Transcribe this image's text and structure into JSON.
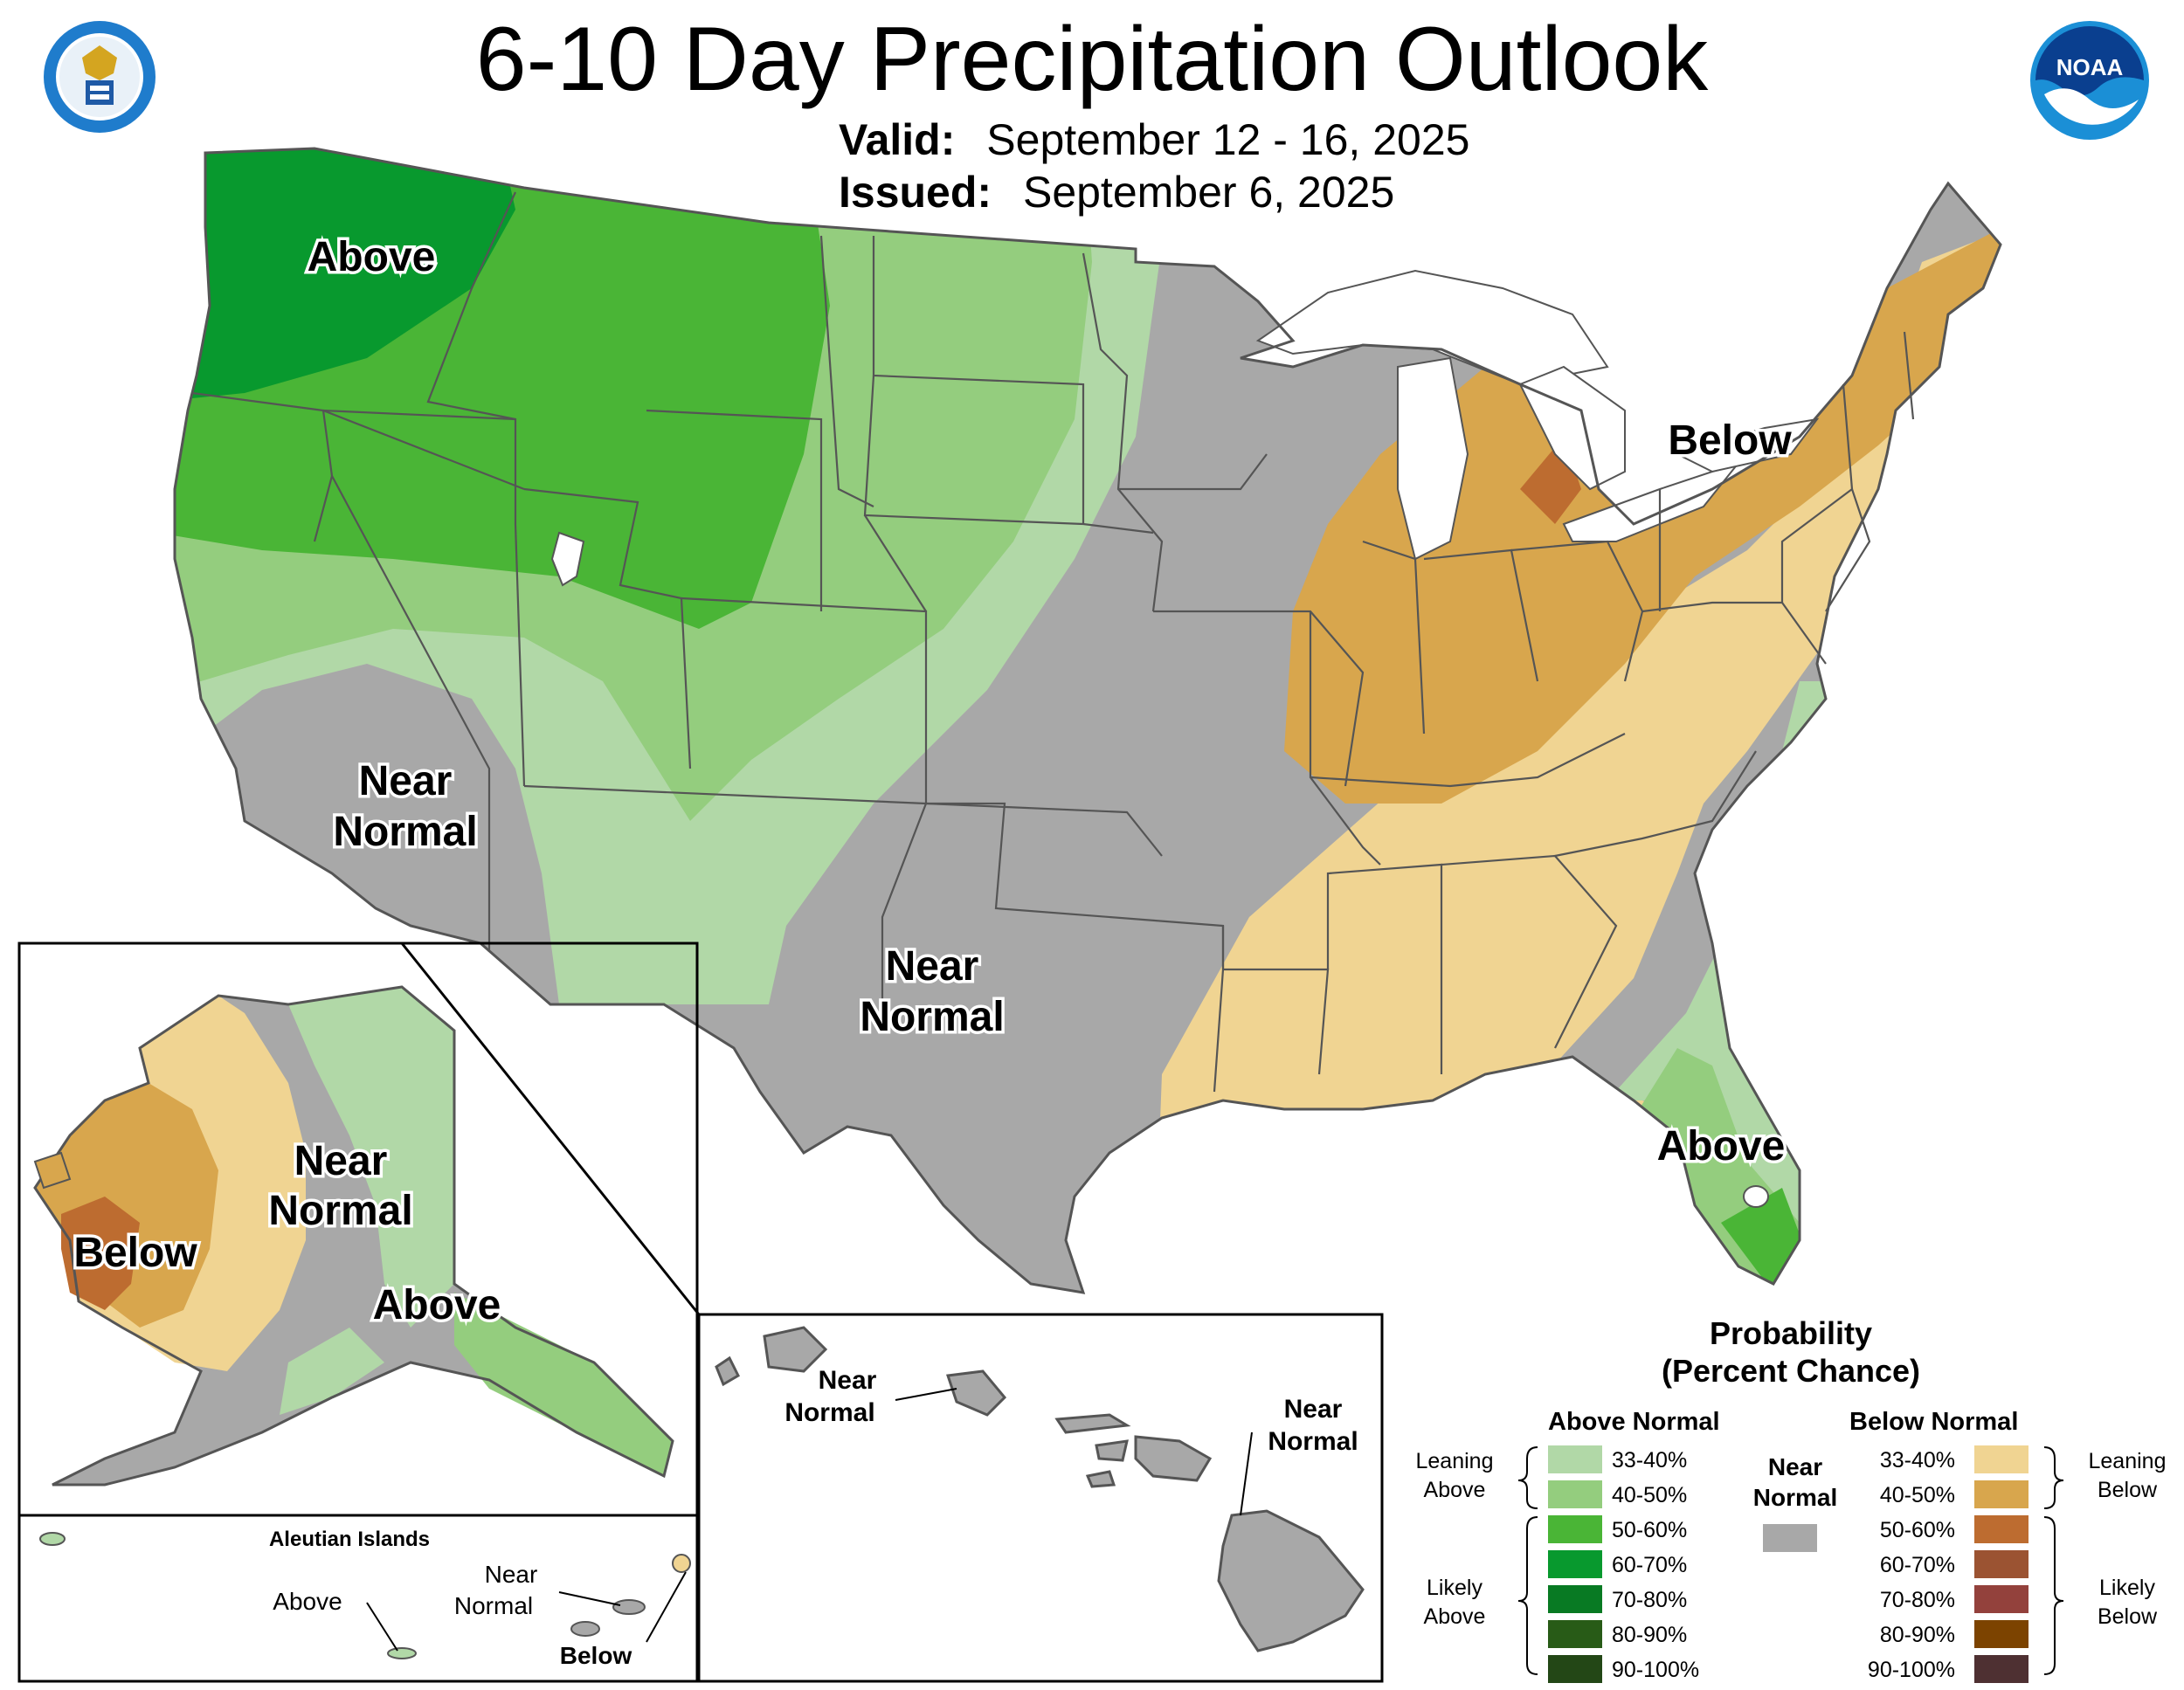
{
  "title": "6-10 Day Precipitation Outlook",
  "valid_label": "Valid:",
  "valid_value": "September 12 - 16, 2025",
  "issued_label": "Issued:",
  "issued_value": "September 6, 2025",
  "logos": {
    "left": "department-of-commerce-seal",
    "right": "noaa-logo",
    "right_text": "NOAA"
  },
  "map": {
    "conus_labels": {
      "above_nw": "Above",
      "near_sw_1": "Near",
      "near_sw_2": "Normal",
      "near_tx_1": "Near",
      "near_tx_2": "Normal",
      "below_ne": "Below",
      "above_fl": "Above"
    },
    "alaska_labels": {
      "near_1": "Near",
      "near_2": "Normal",
      "below": "Below",
      "above": "Above"
    },
    "aleutian": {
      "title": "Aleutian Islands",
      "above": "Above",
      "near_1": "Near",
      "near_2": "Normal",
      "below": "Below"
    },
    "hawaii": {
      "near_w_1": "Near",
      "near_w_2": "Normal",
      "near_e_1": "Near",
      "near_e_2": "Normal"
    }
  },
  "legend": {
    "title_1": "Probability",
    "title_2": "(Percent Chance)",
    "above_header": "Above Normal",
    "below_header": "Below Normal",
    "near_1": "Near",
    "near_2": "Normal",
    "leaning_above_1": "Leaning",
    "leaning_above_2": "Above",
    "likely_above_1": "Likely",
    "likely_above_2": "Above",
    "leaning_below_1": "Leaning",
    "leaning_below_2": "Below",
    "likely_below_1": "Likely",
    "likely_below_2": "Below",
    "above_rows": [
      {
        "label": "33-40%",
        "color": "#b1d8a7"
      },
      {
        "label": "40-50%",
        "color": "#94cd7e"
      },
      {
        "label": "50-60%",
        "color": "#4ab536"
      },
      {
        "label": "60-70%",
        "color": "#08992e"
      },
      {
        "label": "70-80%",
        "color": "#087a23"
      },
      {
        "label": "80-90%",
        "color": "#285b17"
      },
      {
        "label": "90-100%",
        "color": "#234716"
      }
    ],
    "below_rows": [
      {
        "label": "33-40%",
        "color": "#f0d492"
      },
      {
        "label": "40-50%",
        "color": "#d8a64d"
      },
      {
        "label": "50-60%",
        "color": "#bd6c30"
      },
      {
        "label": "60-70%",
        "color": "#9b5332"
      },
      {
        "label": "70-80%",
        "color": "#93413c"
      },
      {
        "label": "80-90%",
        "color": "#7c4300"
      },
      {
        "label": "90-100%",
        "color": "#4e3032"
      }
    ],
    "near_color": "#a8a8a8"
  }
}
